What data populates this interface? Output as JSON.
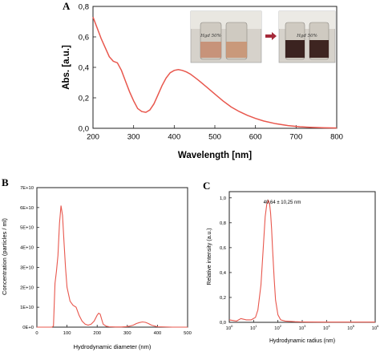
{
  "chart_data": [
    {
      "panel": "A",
      "type": "line",
      "xlabel": "Wavelength [nm]",
      "ylabel": "Abs. [a.u.]",
      "xlim": [
        200,
        800
      ],
      "ylim": [
        0.0,
        0.8
      ],
      "xticks": [
        "200",
        "300",
        "400",
        "500",
        "600",
        "700",
        "800"
      ],
      "yticks": [
        "0,0",
        "0,2",
        "0,4",
        "0,6",
        "0,8"
      ],
      "color": "#e8574d",
      "x": [
        200,
        210,
        220,
        230,
        240,
        250,
        260,
        270,
        280,
        290,
        300,
        310,
        320,
        330,
        340,
        350,
        360,
        370,
        380,
        390,
        400,
        410,
        420,
        430,
        440,
        450,
        460,
        480,
        500,
        520,
        540,
        560,
        580,
        600,
        620,
        650,
        680,
        710,
        740,
        770,
        800
      ],
      "y": [
        0.73,
        0.66,
        0.59,
        0.53,
        0.47,
        0.44,
        0.43,
        0.38,
        0.31,
        0.24,
        0.18,
        0.13,
        0.11,
        0.105,
        0.12,
        0.16,
        0.22,
        0.28,
        0.33,
        0.365,
        0.38,
        0.385,
        0.38,
        0.37,
        0.355,
        0.335,
        0.315,
        0.27,
        0.225,
        0.18,
        0.14,
        0.11,
        0.085,
        0.065,
        0.048,
        0.03,
        0.018,
        0.01,
        0.006,
        0.003,
        0.002
      ]
    },
    {
      "panel": "B",
      "type": "line",
      "xlabel": "Hydrodynamic diameter (nm)",
      "ylabel": "Concentration (particles / ml)",
      "xlim": [
        0,
        500
      ],
      "ylim": [
        0,
        70000000000.0
      ],
      "xticks": [
        "0",
        "100",
        "200",
        "300",
        "400",
        "500"
      ],
      "yticks": [
        "0E+0",
        "1E+10",
        "2E+10",
        "3E+10",
        "4E+10",
        "5E+10",
        "6E+10",
        "7E+10"
      ],
      "color": "#e8574d",
      "x": [
        0,
        40,
        50,
        55,
        60,
        65,
        70,
        75,
        80,
        85,
        90,
        95,
        100,
        110,
        120,
        130,
        140,
        150,
        160,
        170,
        180,
        190,
        200,
        205,
        210,
        215,
        220,
        230,
        240,
        260,
        280,
        300,
        310,
        320,
        330,
        340,
        350,
        360,
        370,
        380,
        400,
        450,
        500
      ],
      "y": [
        0,
        0,
        0,
        600000000.0,
        22000000000.0,
        28000000000.0,
        36000000000.0,
        52000000000.0,
        61000000000.0,
        56000000000.0,
        43000000000.0,
        30000000000.0,
        20000000000.0,
        13000000000.0,
        11000000000.0,
        10000000000.0,
        6000000000.0,
        3000000000.0,
        1500000000.0,
        1000000000.0,
        1500000000.0,
        3000000000.0,
        6000000000.0,
        7000000000.0,
        6500000000.0,
        4000000000.0,
        1500000000.0,
        500000000.0,
        200000000.0,
        100000000.0,
        100000000.0,
        300000000.0,
        600000000.0,
        1000000000.0,
        1800000000.0,
        2300000000.0,
        2600000000.0,
        2400000000.0,
        1800000000.0,
        1000000000.0,
        200000000.0,
        0,
        0
      ]
    },
    {
      "panel": "C",
      "type": "line",
      "xlabel": "Hydrodynamic radius (nm)",
      "ylabel": "Relative intensity (a.u.)",
      "xscale": "log",
      "xlim": [
        1,
        1000000
      ],
      "ylim": [
        0,
        1.05
      ],
      "xticks": [
        "10^0",
        "10^1",
        "10^2",
        "10^3",
        "10^4",
        "10^5",
        "10^6"
      ],
      "yticks": [
        "0,0",
        "0,2",
        "0,4",
        "0,6",
        "0,8",
        "1,0"
      ],
      "annotation": "40,64 ± 10,25 nm",
      "color": "#e8574d",
      "x": [
        1,
        2,
        3,
        5,
        8,
        12,
        15,
        20,
        25,
        30,
        35,
        40,
        45,
        50,
        55,
        60,
        70,
        80,
        100,
        130,
        200,
        500,
        1000,
        10000,
        100000,
        1000000
      ],
      "y": [
        0.02,
        0.01,
        0.03,
        0.02,
        0.02,
        0.04,
        0.1,
        0.3,
        0.6,
        0.85,
        0.95,
        0.98,
        0.96,
        0.88,
        0.75,
        0.6,
        0.35,
        0.18,
        0.06,
        0.02,
        0.01,
        0.005,
        0.003,
        0.002,
        0.002,
        0.002
      ]
    }
  ],
  "panel_letters": {
    "a": "A",
    "b": "B",
    "c": "C"
  },
  "photo_labels": {
    "left": "Hgd  50%",
    "right": "Hgd  50%"
  },
  "colors": {
    "line": "#e8574d",
    "axis": "#222222",
    "arrow": "#a52a3a"
  }
}
